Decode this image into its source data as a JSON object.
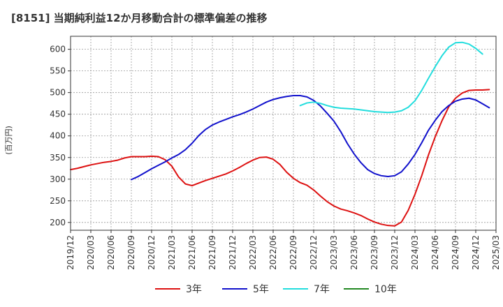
{
  "chart_data": {
    "type": "line",
    "title": "[8151]  当期純利益12か月移動合計の標準偏差の推移",
    "ylabel": "(百万円)",
    "xlabel": "",
    "ylim": [
      182,
      630
    ],
    "yticks": [
      200,
      250,
      300,
      350,
      400,
      450,
      500,
      550,
      600
    ],
    "xtick_labels": [
      "2019/12",
      "2020/03",
      "2020/06",
      "2020/09",
      "2020/12",
      "2021/03",
      "2021/06",
      "2021/09",
      "2021/12",
      "2022/03",
      "2022/06",
      "2022/09",
      "2022/12",
      "2023/03",
      "2023/06",
      "2023/09",
      "2023/12",
      "2024/03",
      "2024/06",
      "2024/09",
      "2024/12",
      "2025/03"
    ],
    "grid": true,
    "legend_position": "bottom",
    "series": [
      {
        "name": "3年",
        "color": "#dd1111",
        "start_index": 0,
        "values": [
          322,
          325,
          329,
          333,
          336,
          339,
          341,
          344,
          349,
          352,
          352,
          352,
          353,
          352,
          345,
          330,
          305,
          289,
          285,
          291,
          297,
          302,
          307,
          312,
          319,
          327,
          336,
          344,
          350,
          351,
          346,
          334,
          316,
          302,
          292,
          286,
          275,
          261,
          248,
          238,
          231,
          227,
          222,
          216,
          208,
          201,
          196,
          193,
          192,
          201,
          228,
          265,
          308,
          356,
          398,
          435,
          467,
          487,
          499,
          505,
          506,
          506,
          507
        ]
      },
      {
        "name": "5年",
        "color": "#1111cc",
        "start_index": 9,
        "values": [
          299,
          306,
          315,
          324,
          332,
          340,
          349,
          357,
          368,
          383,
          401,
          415,
          425,
          432,
          438,
          444,
          449,
          455,
          462,
          470,
          478,
          484,
          488,
          491,
          493,
          493,
          490,
          482,
          469,
          452,
          434,
          410,
          382,
          358,
          338,
          322,
          313,
          308,
          306,
          308,
          317,
          335,
          357,
          384,
          413,
          436,
          456,
          470,
          480,
          485,
          487,
          483,
          474,
          465
        ]
      },
      {
        "name": "7年",
        "color": "#22dddd",
        "start_index": 34,
        "values": [
          470,
          476,
          478,
          475,
          470,
          466,
          464,
          463,
          462,
          460,
          458,
          456,
          455,
          454,
          455,
          458,
          466,
          481,
          505,
          533,
          560,
          585,
          605,
          615,
          616,
          612,
          602,
          589
        ]
      },
      {
        "name": "10年",
        "color": "#228822",
        "start_index": 0,
        "values": []
      }
    ]
  }
}
